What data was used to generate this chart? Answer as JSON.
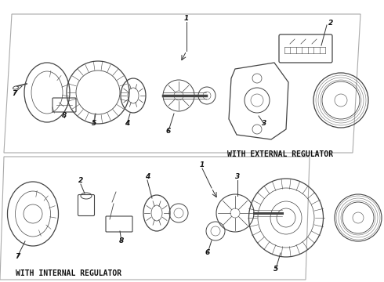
{
  "background_color": "#ffffff",
  "label_with_external": "WITH EXTERNAL REGULATOR",
  "label_with_internal": "WITH INTERNAL REGULATOR",
  "label_font_size": 7.0,
  "line_color": "#333333",
  "component_color": "#444444",
  "text_color": "#111111",
  "line_width": 0.7
}
